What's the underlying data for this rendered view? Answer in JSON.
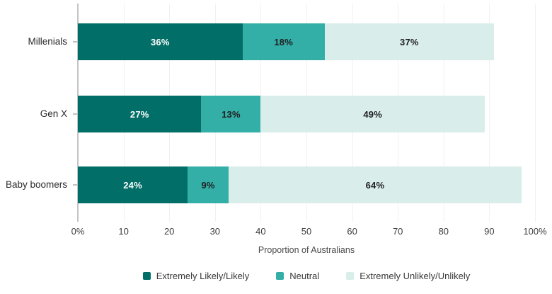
{
  "chart_data": {
    "type": "bar",
    "orientation": "horizontal",
    "stacked": true,
    "title": "",
    "categories": [
      "Millenials",
      "Gen X",
      "Baby boomers"
    ],
    "series": [
      {
        "name": "Extremely Likely/Likely",
        "color": "#016e67",
        "label_color": "#ffffff",
        "values": [
          36,
          27,
          24
        ]
      },
      {
        "name": "Neutral",
        "color": "#33afa8",
        "label_color": "#1f1f1f",
        "values": [
          18,
          13,
          9
        ]
      },
      {
        "name": "Extremely Unlikely/Unlikely",
        "color": "#d9edeb",
        "label_color": "#1f1f1f",
        "values": [
          37,
          49,
          64
        ]
      }
    ],
    "value_label_suffix": "%",
    "xlabel": "Proportion of Australians",
    "xlim": [
      0,
      100
    ],
    "x_ticks": [
      {
        "value": 0,
        "label": "0%"
      },
      {
        "value": 10,
        "label": "10"
      },
      {
        "value": 20,
        "label": "20"
      },
      {
        "value": 30,
        "label": "30"
      },
      {
        "value": 40,
        "label": "40"
      },
      {
        "value": 50,
        "label": "50"
      },
      {
        "value": 60,
        "label": "60"
      },
      {
        "value": 70,
        "label": "70"
      },
      {
        "value": 80,
        "label": "80"
      },
      {
        "value": 90,
        "label": "90"
      },
      {
        "value": 100,
        "label": "100%"
      }
    ],
    "grid": "vertical",
    "legend_position": "bottom",
    "axis_color": "#c4c4c4",
    "grid_color": "#f3f0f1"
  }
}
